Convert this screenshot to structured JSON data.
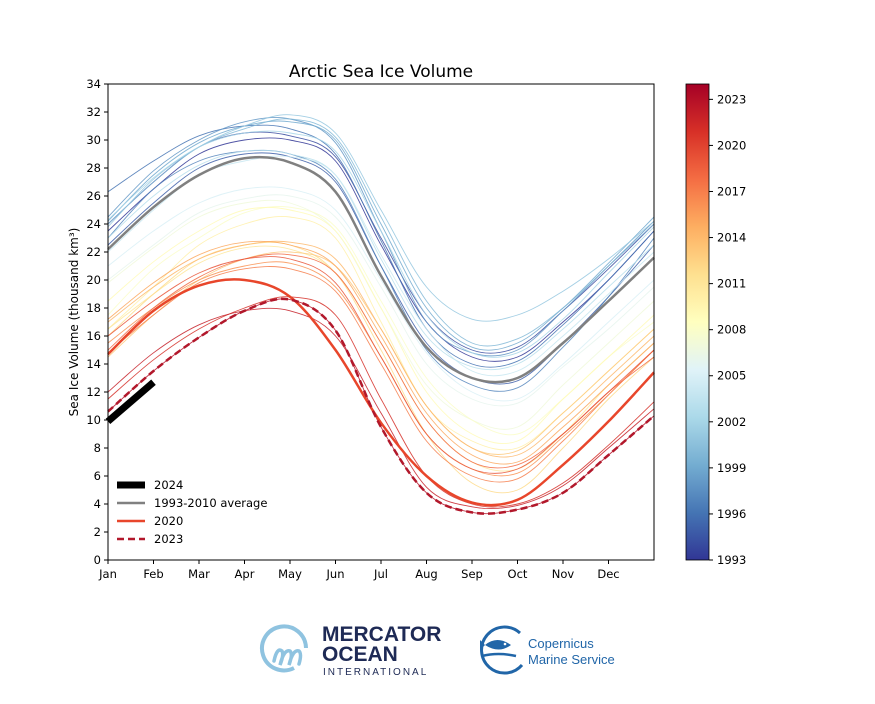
{
  "chart_data": {
    "type": "line",
    "title": "Arctic Sea Ice Volume",
    "xlabel": "",
    "ylabel": "Sea Ice Volume (thousand km³)",
    "x_tick_labels": [
      "Jan",
      "Feb",
      "Mar",
      "Apr",
      "May",
      "Jun",
      "Jul",
      "Aug",
      "Sep",
      "Oct",
      "Nov",
      "Dec"
    ],
    "y_ticks": [
      0,
      2,
      4,
      6,
      8,
      10,
      12,
      14,
      16,
      18,
      20,
      22,
      24,
      26,
      28,
      30,
      32,
      34
    ],
    "ylim": [
      0,
      34
    ],
    "x_points": [
      "Jan 1",
      "Feb 1",
      "Mar 1",
      "Apr 1",
      "May 1",
      "Jun 1",
      "Jul 1",
      "Aug 1",
      "Sep 1",
      "Oct 1",
      "Nov 1",
      "Dec 1",
      "Dec 31"
    ],
    "grid": false,
    "colormap": "RdYlBu_r",
    "colorbar": {
      "range": [
        1993,
        2024
      ],
      "ticks": [
        1993,
        1996,
        1999,
        2002,
        2005,
        2008,
        2011,
        2014,
        2017,
        2020,
        2023
      ]
    },
    "years": [
      {
        "year": 1993,
        "values": [
          23.5,
          26.5,
          29.0,
          30.0,
          30.0,
          28.5,
          22.5,
          17.0,
          14.5,
          14.5,
          17.0,
          20.0,
          23.5
        ]
      },
      {
        "year": 1994,
        "values": [
          24.0,
          27.0,
          29.5,
          30.5,
          30.3,
          28.8,
          23.0,
          17.5,
          15.0,
          15.2,
          17.8,
          20.8,
          24.0
        ]
      },
      {
        "year": 1995,
        "values": [
          22.5,
          25.5,
          28.0,
          29.0,
          28.8,
          27.0,
          21.0,
          15.5,
          13.0,
          12.8,
          15.5,
          18.8,
          22.5
        ]
      },
      {
        "year": 1996,
        "values": [
          26.3,
          28.5,
          30.3,
          31.0,
          30.8,
          29.0,
          22.8,
          16.5,
          14.0,
          14.2,
          16.8,
          20.0,
          23.5
        ]
      },
      {
        "year": 1997,
        "values": [
          23.0,
          26.5,
          28.5,
          29.2,
          29.0,
          27.2,
          21.0,
          15.0,
          12.5,
          12.3,
          15.2,
          18.8,
          23.0
        ]
      },
      {
        "year": 1998,
        "values": [
          24.5,
          27.8,
          30.0,
          31.3,
          31.5,
          29.8,
          23.5,
          17.0,
          14.8,
          15.0,
          17.8,
          21.0,
          24.2
        ]
      },
      {
        "year": 1999,
        "values": [
          24.2,
          27.5,
          29.8,
          31.0,
          31.3,
          30.0,
          24.0,
          18.0,
          15.2,
          15.5,
          18.0,
          21.2,
          24.5
        ]
      },
      {
        "year": 2000,
        "values": [
          24.0,
          27.0,
          29.5,
          30.8,
          31.5,
          30.2,
          24.5,
          18.5,
          15.5,
          15.8,
          18.0,
          21.0,
          24.0
        ]
      },
      {
        "year": 2001,
        "values": [
          23.8,
          27.2,
          29.5,
          31.0,
          31.8,
          30.5,
          25.0,
          19.5,
          17.2,
          17.5,
          19.2,
          21.5,
          24.2
        ]
      },
      {
        "year": 2002,
        "values": [
          24.3,
          27.3,
          29.5,
          30.5,
          30.5,
          29.2,
          23.5,
          17.5,
          14.8,
          14.8,
          17.2,
          20.5,
          23.8
        ]
      },
      {
        "year": 2003,
        "values": [
          23.0,
          26.0,
          28.2,
          29.2,
          29.0,
          27.5,
          21.5,
          16.0,
          13.8,
          14.0,
          16.5,
          19.5,
          22.5
        ]
      },
      {
        "year": 2004,
        "values": [
          22.0,
          25.0,
          27.5,
          28.5,
          28.8,
          27.5,
          21.8,
          16.5,
          13.5,
          13.5,
          16.0,
          19.0,
          22.0
        ]
      },
      {
        "year": 2005,
        "values": [
          21.0,
          23.5,
          25.5,
          26.5,
          26.5,
          25.0,
          20.0,
          14.8,
          12.0,
          11.5,
          14.0,
          17.0,
          20.0
        ]
      },
      {
        "year": 2006,
        "values": [
          20.0,
          22.5,
          24.8,
          25.8,
          26.0,
          24.5,
          19.5,
          14.0,
          11.5,
          11.2,
          13.8,
          16.5,
          19.5
        ]
      },
      {
        "year": 2007,
        "values": [
          19.8,
          22.3,
          24.5,
          25.5,
          25.5,
          23.5,
          18.0,
          12.5,
          10.0,
          9.5,
          12.5,
          15.5,
          18.5
        ]
      },
      {
        "year": 2008,
        "values": [
          17.5,
          20.8,
          23.0,
          24.8,
          25.2,
          23.8,
          18.5,
          13.0,
          10.0,
          9.0,
          11.5,
          14.5,
          17.0
        ]
      },
      {
        "year": 2009,
        "values": [
          18.5,
          21.3,
          23.5,
          25.0,
          25.0,
          23.5,
          18.0,
          12.0,
          9.0,
          8.5,
          11.5,
          14.5,
          17.5
        ]
      },
      {
        "year": 2010,
        "values": [
          16.5,
          19.5,
          22.5,
          24.0,
          24.5,
          23.0,
          17.0,
          11.0,
          8.5,
          8.0,
          10.5,
          13.5,
          16.5
        ]
      },
      {
        "year": 2011,
        "values": [
          16.5,
          19.0,
          21.2,
          22.3,
          22.2,
          20.5,
          15.5,
          10.0,
          7.0,
          6.5,
          9.0,
          12.5,
          15.5
        ]
      },
      {
        "year": 2012,
        "values": [
          16.0,
          19.0,
          21.5,
          22.5,
          22.5,
          20.5,
          15.0,
          9.0,
          5.5,
          5.0,
          8.0,
          11.5,
          14.5
        ]
      },
      {
        "year": 2013,
        "values": [
          14.5,
          17.5,
          20.0,
          21.5,
          22.0,
          21.0,
          16.5,
          11.0,
          8.0,
          7.8,
          10.5,
          13.5,
          16.5
        ]
      },
      {
        "year": 2014,
        "values": [
          17.0,
          19.5,
          21.5,
          22.5,
          22.7,
          21.5,
          16.5,
          11.0,
          8.0,
          7.5,
          10.0,
          13.0,
          16.0
        ]
      },
      {
        "year": 2015,
        "values": [
          17.2,
          19.8,
          21.8,
          22.7,
          22.5,
          21.0,
          16.0,
          10.5,
          7.5,
          7.0,
          9.5,
          12.5,
          15.5
        ]
      },
      {
        "year": 2016,
        "values": [
          15.5,
          18.0,
          20.0,
          21.0,
          21.2,
          19.5,
          14.5,
          9.0,
          6.5,
          6.2,
          8.8,
          11.8,
          15.0
        ]
      },
      {
        "year": 2017,
        "values": [
          14.8,
          17.5,
          19.8,
          20.8,
          20.8,
          19.2,
          14.0,
          8.5,
          6.0,
          5.8,
          8.5,
          11.8,
          15.0
        ]
      },
      {
        "year": 2018,
        "values": [
          15.0,
          18.0,
          20.2,
          21.5,
          21.8,
          20.5,
          15.5,
          10.0,
          7.0,
          6.8,
          9.0,
          12.0,
          14.5
        ]
      },
      {
        "year": 2019,
        "values": [
          16.0,
          18.5,
          20.5,
          21.5,
          21.5,
          19.8,
          14.5,
          9.0,
          6.5,
          6.5,
          9.0,
          12.0,
          15.0
        ]
      },
      {
        "year": 2021,
        "values": [
          11.5,
          14.3,
          16.5,
          18.0,
          18.8,
          17.5,
          11.5,
          6.0,
          4.0,
          4.0,
          5.5,
          8.2,
          11.3
        ]
      },
      {
        "year": 2022,
        "values": [
          12.0,
          14.8,
          16.8,
          17.8,
          17.8,
          16.0,
          10.5,
          5.2,
          3.8,
          3.9,
          5.3,
          8.0,
          10.8
        ]
      }
    ],
    "series": [
      {
        "name": "1993-2010 average",
        "color": "#808080",
        "style": "solid",
        "values": [
          22.2,
          25.2,
          27.5,
          28.7,
          28.4,
          26.3,
          20.3,
          15.2,
          13.0,
          13.0,
          15.5,
          18.5,
          21.6
        ]
      },
      {
        "name": "2020",
        "color": "#e8462b",
        "style": "solid",
        "values": [
          14.7,
          17.8,
          19.6,
          20.0,
          18.8,
          15.0,
          9.8,
          6.0,
          4.1,
          4.3,
          6.8,
          9.9,
          13.4
        ]
      },
      {
        "name": "2023",
        "color": "#b2182b",
        "style": "dashed",
        "values": [
          10.6,
          13.5,
          15.9,
          17.8,
          18.6,
          16.4,
          9.5,
          4.8,
          3.4,
          3.6,
          4.8,
          7.5,
          10.3
        ]
      },
      {
        "name": "2024",
        "color": "#000000",
        "style": "thick",
        "values": [
          9.9,
          12.7
        ]
      }
    ],
    "legend": {
      "placement": "lower-left",
      "entries": [
        "2024",
        "1993-2010 average",
        "2020",
        "2023"
      ]
    }
  },
  "logos": {
    "mercator": {
      "line1": "MERCATOR",
      "line2": "OCEAN",
      "line3": "INTERNATIONAL"
    },
    "copernicus": {
      "line1": "Copernicus",
      "line2": "Marine Service"
    }
  }
}
